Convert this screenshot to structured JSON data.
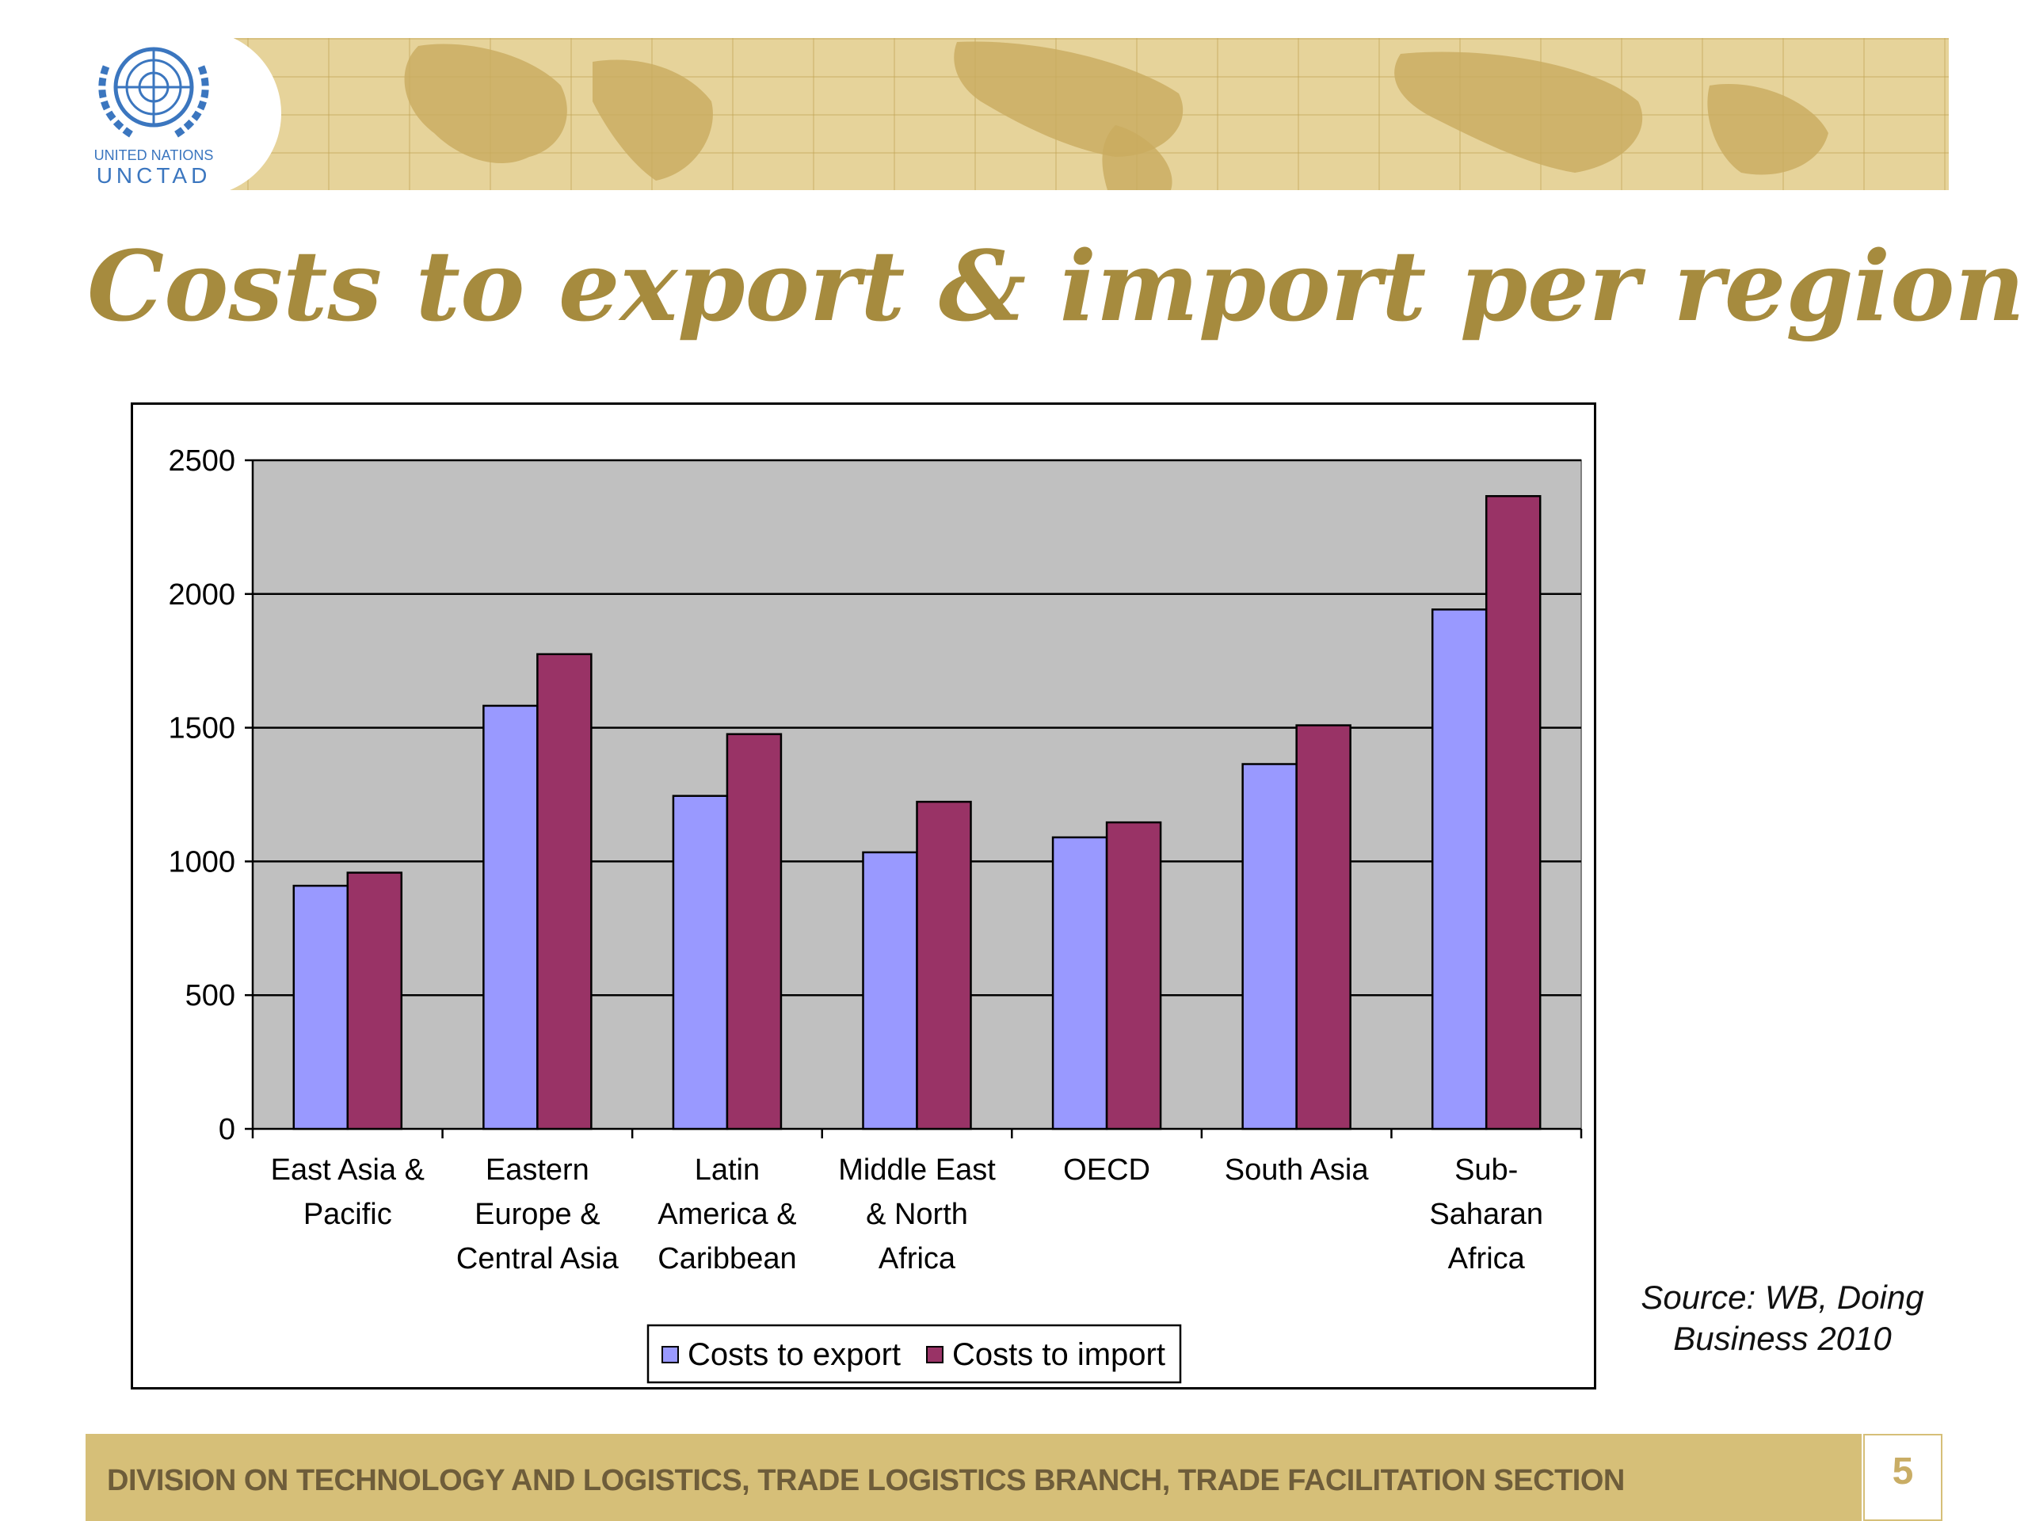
{
  "logo": {
    "line1": "UNITED NATIONS",
    "line2": "UNCTAD"
  },
  "title": "Costs to export & import per region",
  "source": [
    "Source: WB, Doing",
    "Business 2010"
  ],
  "footer": {
    "text": "DIVISION ON TECHNOLOGY AND LOGISTICS, TRADE LOGISTICS BRANCH, TRADE FACILITATION SECTION",
    "page_number": "5"
  },
  "colors": {
    "export": "#9999ff",
    "import": "#993366",
    "plot_bg": "#c0c0c0",
    "title": "#a68b3e",
    "header_band": "#e6d39a",
    "footer_band": "#d6bf78"
  },
  "chart_data": {
    "type": "bar",
    "categories": [
      [
        "East Asia &",
        "Pacific"
      ],
      [
        "Eastern",
        "Europe &",
        "Central Asia"
      ],
      [
        "Latin",
        "America &",
        "Caribbean"
      ],
      [
        "Middle East",
        "& North",
        "Africa"
      ],
      [
        "OECD"
      ],
      [
        "South Asia"
      ],
      [
        "Sub-",
        "Saharan",
        "Africa"
      ]
    ],
    "series": [
      {
        "name": "Costs to export",
        "values": [
          909,
          1582,
          1245,
          1034,
          1090,
          1364,
          1942
        ]
      },
      {
        "name": "Costs to import",
        "values": [
          958,
          1775,
          1476,
          1223,
          1146,
          1509,
          2366
        ]
      }
    ],
    "ylim": [
      0,
      2500
    ],
    "yticks": [
      "0",
      "500",
      "1000",
      "1500",
      "2000",
      "2500"
    ],
    "grid": true,
    "legend": "bottom"
  }
}
